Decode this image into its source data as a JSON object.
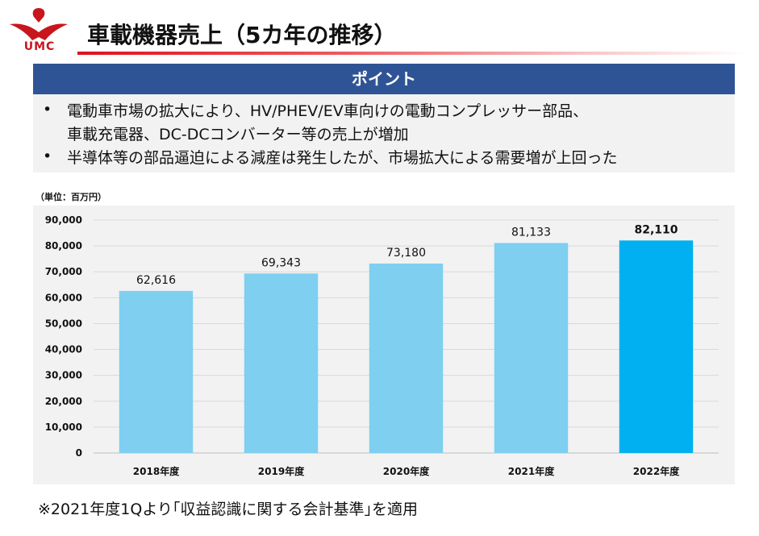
{
  "logo": {
    "text": "UMC"
  },
  "header": {
    "title": "車載機器売上（5カ年の推移）"
  },
  "point": {
    "heading": "ポイント",
    "bullet_char": "•",
    "bullets": [
      "電動車市場の拡大により、HV/PHEV/EV車向けの電動コンプレッサー部品、",
      "車載充電器、DC-DCコンバーター等の売上が増加",
      "半導体等の部品逼迫による減産は発生したが、市場拡大による需要増が上回った"
    ]
  },
  "unit_label": "（単位：百万円）",
  "footnote": "※2021年度1Qより｢収益認識に関する会計基準｣を適用",
  "colors": {
    "bar": "#7ecff0",
    "bar_highlight": "#00b0f0",
    "header_bg": "#2f5496",
    "logo_red": "#c8161d"
  },
  "chart_data": {
    "type": "bar",
    "categories": [
      "2018年度",
      "2019年度",
      "2020年度",
      "2021年度",
      "2022年度"
    ],
    "values": [
      62616,
      69343,
      73180,
      81133,
      82110
    ],
    "value_labels": [
      "62,616",
      "69,343",
      "73,180",
      "81,133",
      "82,110"
    ],
    "highlight_index": 4,
    "ylim": [
      0,
      90000
    ],
    "yticks": [
      0,
      10000,
      20000,
      30000,
      40000,
      50000,
      60000,
      70000,
      80000,
      90000
    ],
    "ytick_labels": [
      "0",
      "10,000",
      "20,000",
      "30,000",
      "40,000",
      "50,000",
      "60,000",
      "70,000",
      "80,000",
      "90,000"
    ],
    "grid": true,
    "title": "",
    "xlabel": "",
    "ylabel": ""
  }
}
